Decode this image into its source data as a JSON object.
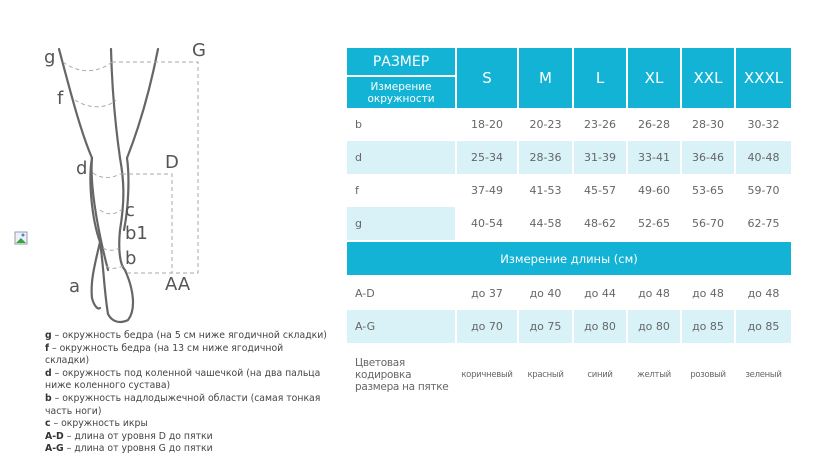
{
  "figure": {
    "labels": {
      "g": "g",
      "G": "G",
      "f": "f",
      "d": "d",
      "D": "D",
      "c": "c",
      "b1": "b1",
      "b": "b",
      "a": "a",
      "AA": "AA"
    }
  },
  "legend": [
    {
      "key": "g",
      "text": " – окружность бедра (на 5 см ниже ягодичной складки)"
    },
    {
      "key": "f",
      "text": " – окружность бедра (на 13 см ниже ягодичной складки)"
    },
    {
      "key": "d",
      "text": " – окружность под коленной чашечкой (на два пальца ниже коленного сустава)"
    },
    {
      "key": "b",
      "text": " – окружность надлодыжечной области (самая тонкая часть ноги)"
    },
    {
      "key": "c",
      "text": " – окружность икры"
    },
    {
      "key": "A-D",
      "text": " – длина от уровня D до пятки"
    },
    {
      "key": "A-G",
      "text": " – длина от уровня G до пятки"
    }
  ],
  "table": {
    "title": "РАЗМЕР",
    "subtitle": "Измерение окружности",
    "sizes": [
      "S",
      "M",
      "L",
      "XL",
      "XXL",
      "XXXL"
    ],
    "circumference_rows": [
      {
        "label": "b",
        "values": [
          "18-20",
          "20-23",
          "23-26",
          "26-28",
          "28-30",
          "30-32"
        ]
      },
      {
        "label": "d",
        "values": [
          "25-34",
          "28-36",
          "31-39",
          "33-41",
          "36-46",
          "40-48"
        ]
      },
      {
        "label": "f",
        "values": [
          "37-49",
          "41-53",
          "45-57",
          "49-60",
          "53-65",
          "59-70"
        ]
      },
      {
        "label": "g",
        "values": [
          "40-54",
          "44-58",
          "48-62",
          "52-65",
          "56-70",
          "62-75"
        ]
      }
    ],
    "length_header": "Измерение длины (см)",
    "length_rows": [
      {
        "label": "A-D",
        "values": [
          "до 37",
          "до 40",
          "до 44",
          "до 48",
          "до 48",
          "до 48"
        ]
      },
      {
        "label": "A-G",
        "values": [
          "до 70",
          "до 75",
          "до 80",
          "до 80",
          "до 85",
          "до 85"
        ]
      }
    ],
    "color_row": {
      "label": "Цветовая кодировка размера на пятке",
      "values": [
        "коричневый",
        "красный",
        "синий",
        "желтый",
        "розовый",
        "зеленый"
      ]
    }
  },
  "colors": {
    "accent": "#12b3d5",
    "highlight": "#d8f2f8"
  }
}
